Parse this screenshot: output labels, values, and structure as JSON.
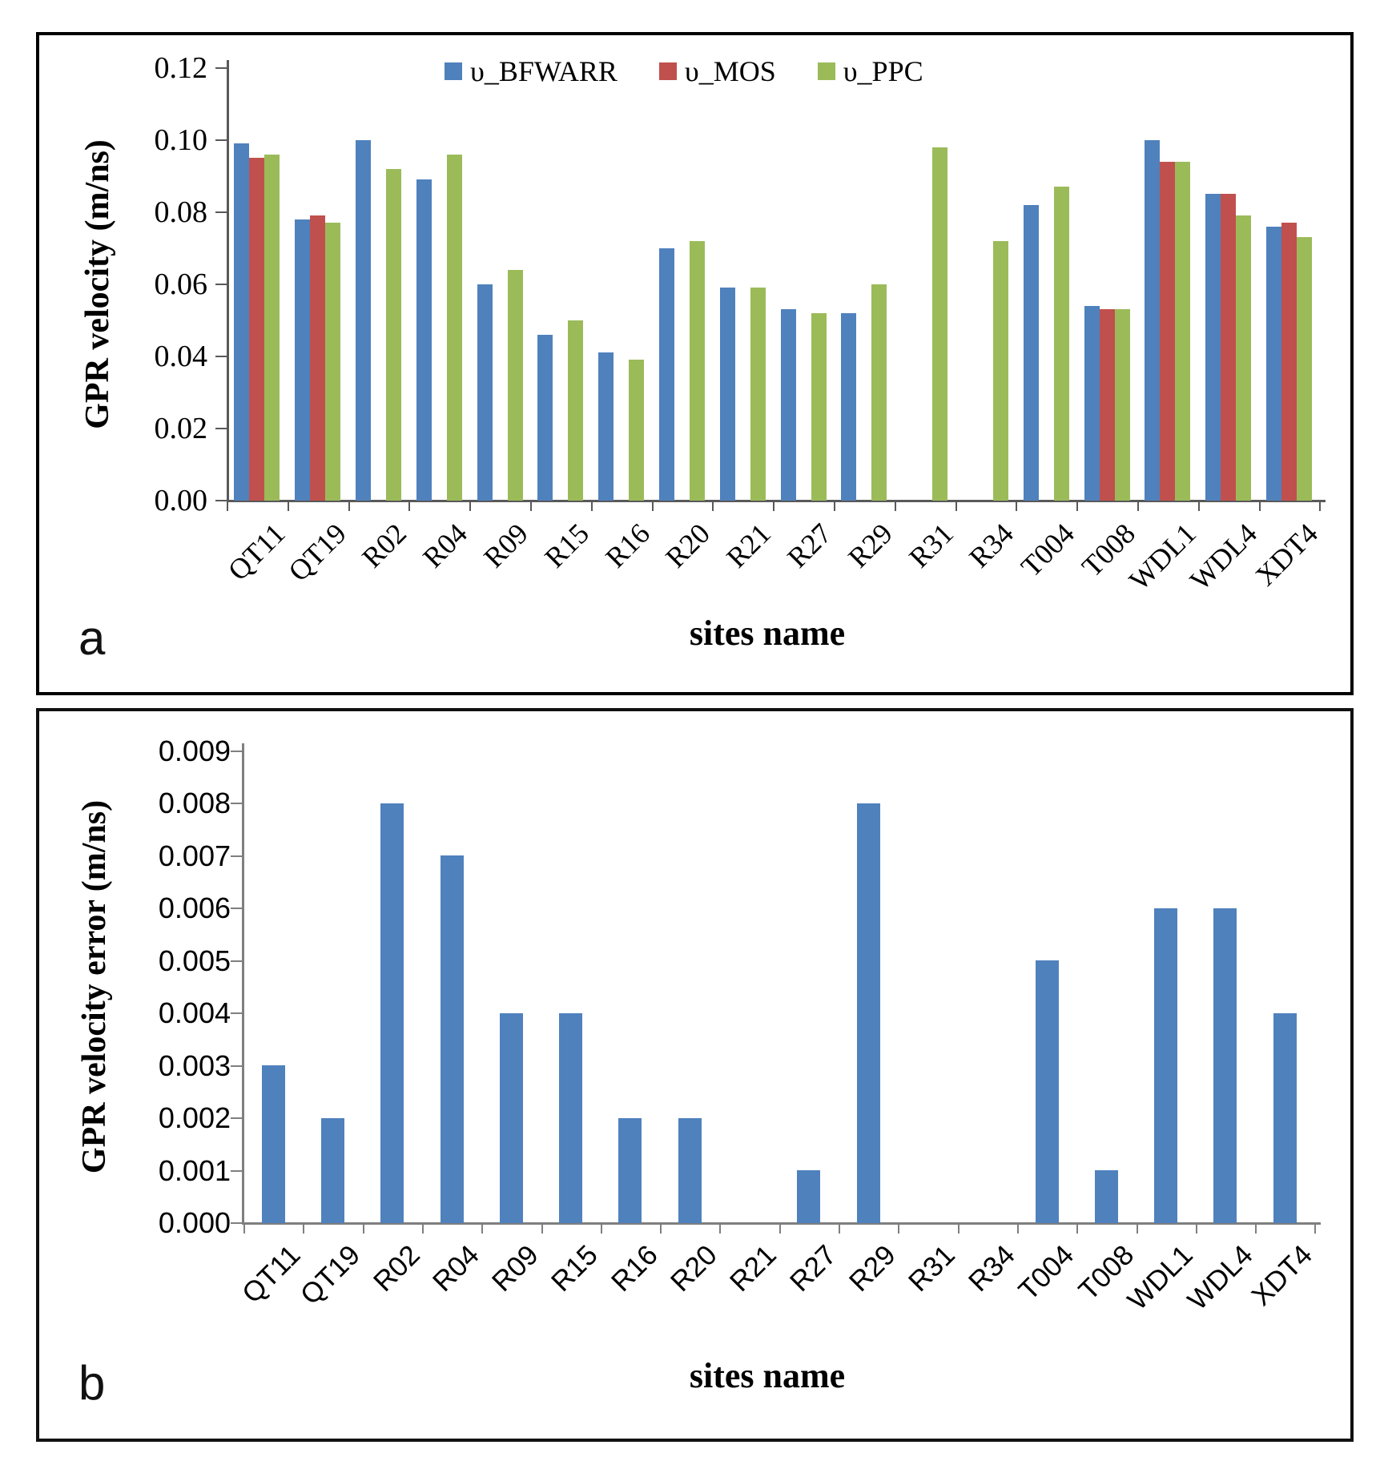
{
  "figure": {
    "panels": [
      {
        "letter": "a",
        "x_title": "sites name",
        "y_title": "GPR velocity (m/ns)"
      },
      {
        "letter": "b",
        "x_title": "sites name",
        "y_title": "GPR velocity error (m/ns)"
      }
    ]
  },
  "chart_data": [
    {
      "type": "bar",
      "title": "",
      "categories": [
        "QT11",
        "QT19",
        "R02",
        "R04",
        "R09",
        "R15",
        "R16",
        "R20",
        "R21",
        "R27",
        "R29",
        "R31",
        "R34",
        "T004",
        "T008",
        "WDL1",
        "WDL4",
        "XDT4"
      ],
      "series": [
        {
          "name": "υ_BFWARR",
          "color": "#4F81BD",
          "values": [
            0.099,
            0.078,
            0.1,
            0.089,
            0.06,
            0.046,
            0.041,
            0.07,
            0.059,
            0.053,
            0.052,
            null,
            null,
            0.082,
            0.054,
            0.1,
            0.085,
            0.076
          ]
        },
        {
          "name": "υ_MOS",
          "color": "#C0504D",
          "values": [
            0.095,
            0.079,
            null,
            null,
            null,
            null,
            null,
            null,
            null,
            null,
            null,
            null,
            null,
            null,
            0.053,
            0.094,
            0.085,
            0.077
          ]
        },
        {
          "name": "υ_PPC",
          "color": "#9BBB59",
          "values": [
            0.096,
            0.077,
            0.092,
            0.096,
            0.064,
            0.05,
            0.039,
            0.072,
            0.059,
            0.052,
            0.06,
            0.098,
            0.072,
            0.087,
            0.053,
            0.094,
            0.079,
            0.073
          ]
        }
      ],
      "xlabel": "sites name",
      "ylabel": "GPR velocity (m/ns)",
      "ylim": [
        0,
        0.12
      ],
      "y_ticks": [
        "0.00",
        "0.02",
        "0.04",
        "0.06",
        "0.08",
        "0.10",
        "0.12"
      ],
      "legend_position": "top-center",
      "grid": false
    },
    {
      "type": "bar",
      "title": "",
      "categories": [
        "QT11",
        "QT19",
        "R02",
        "R04",
        "R09",
        "R15",
        "R16",
        "R20",
        "R21",
        "R27",
        "R29",
        "R31",
        "R34",
        "T004",
        "T008",
        "WDL1",
        "WDL4",
        "XDT4"
      ],
      "series": [
        {
          "name": "",
          "color": "#4F81BD",
          "values": [
            0.003,
            0.002,
            0.008,
            0.007,
            0.004,
            0.004,
            0.002,
            0.002,
            0,
            0.001,
            0.008,
            0,
            0,
            0.005,
            0.001,
            0.006,
            0.006,
            0.004
          ]
        }
      ],
      "xlabel": "sites name",
      "ylabel": "GPR velocity error (m/ns)",
      "ylim": [
        0,
        0.009
      ],
      "y_ticks": [
        "0.000",
        "0.001",
        "0.002",
        "0.003",
        "0.004",
        "0.005",
        "0.006",
        "0.007",
        "0.008",
        "0.009"
      ],
      "legend_position": "none",
      "grid": false
    }
  ]
}
